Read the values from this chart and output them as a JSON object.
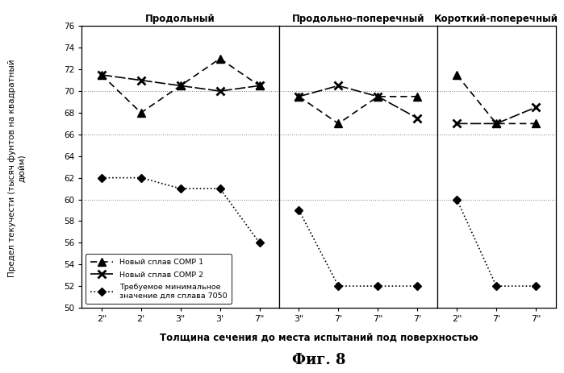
{
  "panel1": {
    "title": "Продольный",
    "xticks": [
      "2\"",
      "2'",
      "3\"",
      "3'",
      "7\""
    ],
    "comp1": [
      71.5,
      68.0,
      70.5,
      73.0,
      70.5
    ],
    "comp2": [
      71.5,
      71.0,
      70.5,
      70.0,
      70.5
    ],
    "min7050": [
      62.0,
      62.0,
      61.0,
      61.0,
      56.0
    ],
    "hlines": [
      70.0,
      66.0,
      60.0
    ]
  },
  "panel2": {
    "title": "Продольно-поперечный",
    "xticks": [
      "3\"",
      "7'",
      "7\"",
      "7'"
    ],
    "comp1": [
      69.5,
      67.0,
      69.5,
      69.5
    ],
    "comp2": [
      69.5,
      70.5,
      69.5,
      67.5
    ],
    "min7050": [
      59.0,
      52.0,
      52.0,
      52.0
    ],
    "hlines": [
      70.0,
      66.0,
      60.0
    ]
  },
  "panel3": {
    "title": "Короткий-поперечный",
    "xticks": [
      "2\"",
      "7'",
      "7\""
    ],
    "comp1": [
      71.5,
      67.0,
      67.0
    ],
    "comp2": [
      67.0,
      67.0,
      68.5
    ],
    "min7050": [
      60.0,
      52.0,
      52.0
    ],
    "hlines": [
      70.0,
      66.0,
      60.0
    ]
  },
  "ylabel": "Предел текучести (тысяч фунтов на квадратный\nдюйм)",
  "xlabel": "Толщина сечения до места испытаний под поверхностью",
  "fig_title": "Фиг. 8",
  "ylim": [
    50,
    76
  ],
  "yticks": [
    50,
    52,
    54,
    56,
    58,
    60,
    62,
    64,
    66,
    68,
    70,
    72,
    74,
    76
  ],
  "legend_labels": [
    "Новый сплав COMP 1",
    "Новый сплав COMP 2",
    "Требуемое минимальное\nзначение для сплава 7050"
  ],
  "bg_color": "#ffffff",
  "line_color": "#000000"
}
